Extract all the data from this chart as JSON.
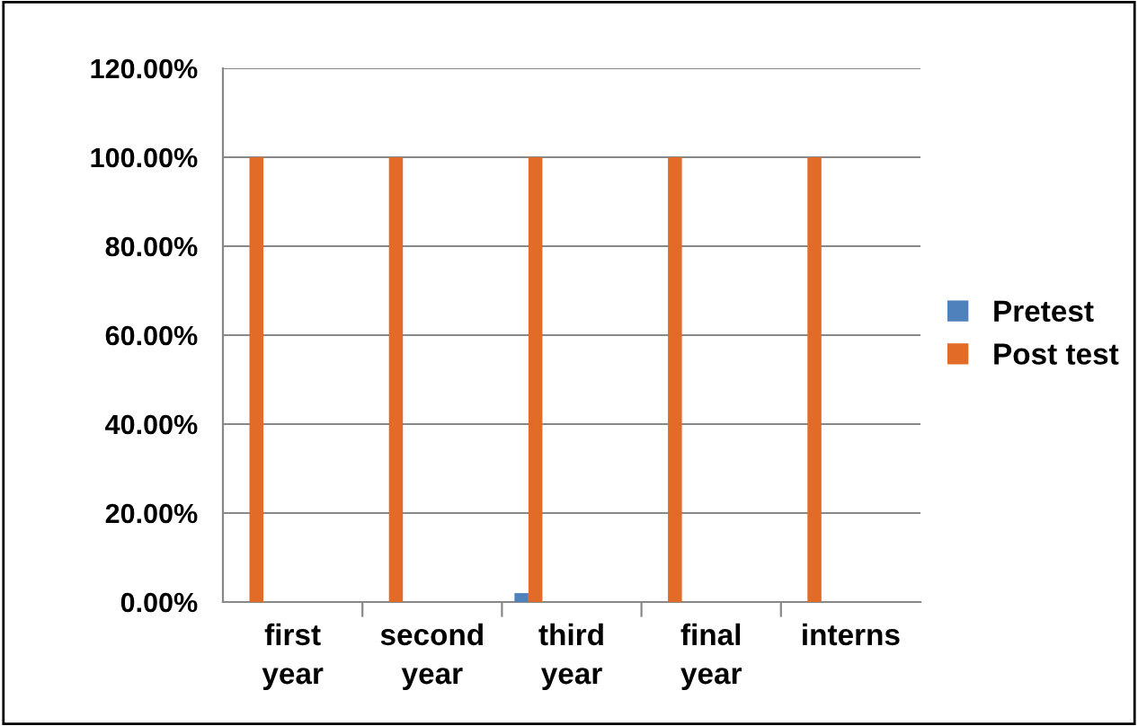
{
  "chart_data": {
    "type": "bar",
    "categories": [
      "first\nyear",
      "second\nyear",
      "third\nyear",
      "final\nyear",
      "interns"
    ],
    "series": [
      {
        "name": "Pretest",
        "color": "#4f81bd",
        "values": [
          0,
          0,
          2,
          0,
          0
        ]
      },
      {
        "name": "Post test",
        "color": "#e26b27",
        "values": [
          100,
          100,
          100,
          100,
          100
        ]
      }
    ],
    "ylim": [
      0,
      120
    ],
    "yticks": [
      {
        "value": 0,
        "label": "0.00%"
      },
      {
        "value": 20,
        "label": "20.00%"
      },
      {
        "value": 40,
        "label": "40.00%"
      },
      {
        "value": 60,
        "label": "60.00%"
      },
      {
        "value": 80,
        "label": "80.00%"
      },
      {
        "value": 100,
        "label": "100.00%"
      },
      {
        "value": 120,
        "label": "120.00%"
      }
    ],
    "grid": "y",
    "legend": "right"
  }
}
